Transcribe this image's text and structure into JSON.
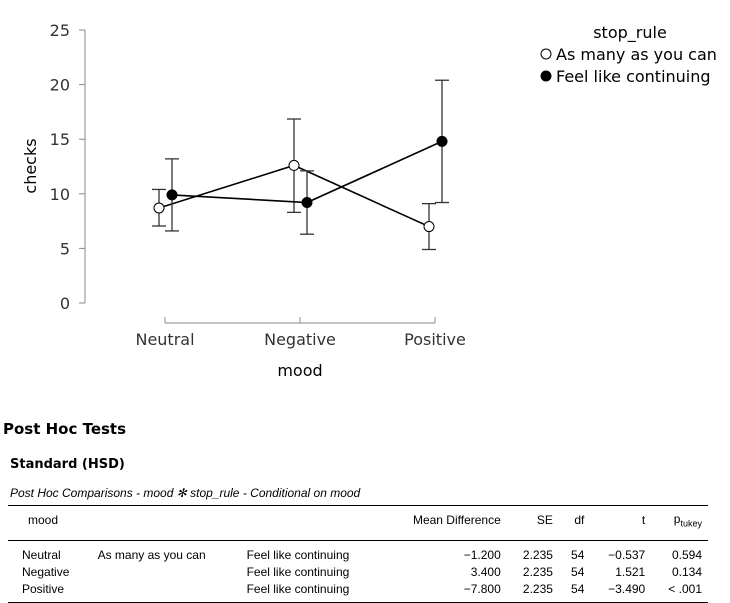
{
  "chart_data": {
    "type": "line",
    "xlabel": "mood",
    "ylabel": "checks",
    "categories": [
      "Neutral",
      "Negative",
      "Positive"
    ],
    "yticks": [
      "0",
      "5",
      "10",
      "15",
      "20",
      "25"
    ],
    "ylim": [
      0,
      25
    ],
    "legend": {
      "title": "stop_rule",
      "placement": "top-right"
    },
    "series": [
      {
        "name": "As many as you can",
        "marker": "open",
        "values": [
          8.7,
          12.6,
          7.0
        ],
        "lower": [
          7.05,
          8.3,
          4.9
        ],
        "upper": [
          10.4,
          16.85,
          9.1
        ]
      },
      {
        "name": "Feel like continuing",
        "marker": "filled",
        "values": [
          9.9,
          9.2,
          14.8
        ],
        "lower": [
          6.6,
          6.3,
          9.2
        ],
        "upper": [
          13.2,
          12.1,
          20.4
        ]
      }
    ]
  },
  "posthoc": {
    "title": "Post Hoc Tests",
    "subtitle": "Standard (HSD)",
    "caption": "Post Hoc Comparisons - mood ✻ stop_rule - Conditional on mood",
    "headers": {
      "mood": "mood",
      "md": "Mean Difference",
      "se": "SE",
      "df": "df",
      "t": "t",
      "p": "p",
      "p_sub": "tukey"
    },
    "rows": [
      {
        "mood": "Neutral",
        "a": "As many as you can",
        "b": "Feel like continuing",
        "md": "−1.200",
        "se": "2.235",
        "df": "54",
        "t": "−0.537",
        "p": "0.594"
      },
      {
        "mood": "Negative",
        "a": "",
        "b": "Feel like continuing",
        "md": "3.400",
        "se": "2.235",
        "df": "54",
        "t": "1.521",
        "p": "0.134"
      },
      {
        "mood": "Positive",
        "a": "",
        "b": "Feel like continuing",
        "md": "−7.800",
        "se": "2.235",
        "df": "54",
        "t": "−3.490",
        "p": "< .001"
      }
    ]
  }
}
